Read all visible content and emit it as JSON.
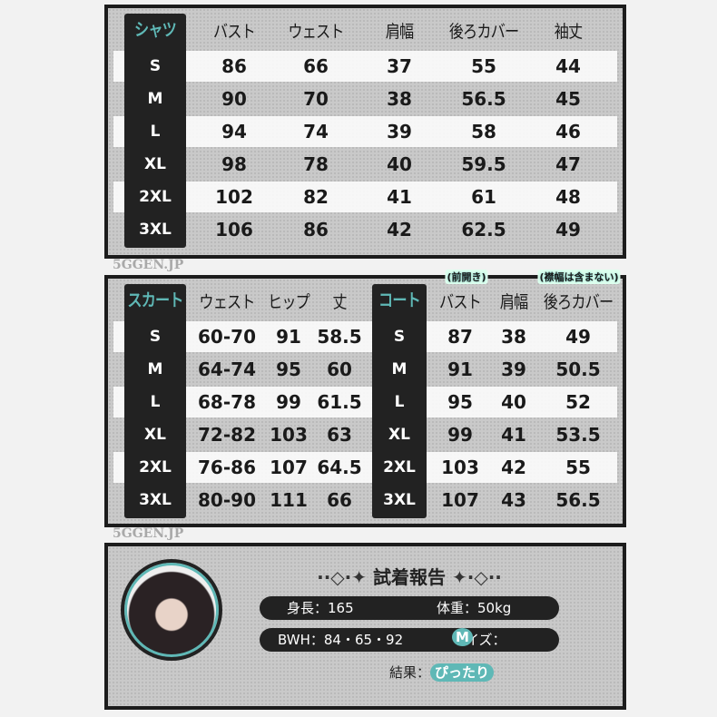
{
  "watermark": "5GGEN.JP",
  "shirt": {
    "label": "シャツ",
    "headers": [
      "バスト",
      "ウェスト",
      "肩幅",
      "後ろカバー",
      "袖丈"
    ],
    "rows": [
      {
        "size": "S",
        "values": [
          "86",
          "66",
          "37",
          "55",
          "44"
        ]
      },
      {
        "size": "M",
        "values": [
          "90",
          "70",
          "38",
          "56.5",
          "45"
        ]
      },
      {
        "size": "L",
        "values": [
          "94",
          "74",
          "39",
          "58",
          "46"
        ]
      },
      {
        "size": "XL",
        "values": [
          "98",
          "78",
          "40",
          "59.5",
          "47"
        ]
      },
      {
        "size": "2XL",
        "values": [
          "102",
          "82",
          "41",
          "61",
          "48"
        ]
      },
      {
        "size": "3XL",
        "values": [
          "106",
          "86",
          "42",
          "62.5",
          "49"
        ]
      }
    ]
  },
  "skirt": {
    "label": "スカート",
    "headers": [
      "ウェスト",
      "ヒップ",
      "丈"
    ],
    "rows": [
      {
        "size": "S",
        "values": [
          "60-70",
          "91",
          "58.5"
        ]
      },
      {
        "size": "M",
        "values": [
          "64-74",
          "95",
          "60"
        ]
      },
      {
        "size": "L",
        "values": [
          "68-78",
          "99",
          "61.5"
        ]
      },
      {
        "size": "XL",
        "values": [
          "72-82",
          "103",
          "63"
        ]
      },
      {
        "size": "2XL",
        "values": [
          "76-86",
          "107",
          "64.5"
        ]
      },
      {
        "size": "3XL",
        "values": [
          "80-90",
          "111",
          "66"
        ]
      }
    ]
  },
  "coat": {
    "label": "コート",
    "notes": [
      "(前開き)",
      "(襟幅は含まない)"
    ],
    "headers": [
      "バスト",
      "肩幅",
      "後ろカバー"
    ],
    "rows": [
      {
        "size": "S",
        "values": [
          "87",
          "38",
          "49"
        ]
      },
      {
        "size": "M",
        "values": [
          "91",
          "39",
          "50.5"
        ]
      },
      {
        "size": "L",
        "values": [
          "95",
          "40",
          "52"
        ]
      },
      {
        "size": "XL",
        "values": [
          "99",
          "41",
          "53.5"
        ]
      },
      {
        "size": "2XL",
        "values": [
          "103",
          "42",
          "55"
        ]
      },
      {
        "size": "3XL",
        "values": [
          "107",
          "43",
          "56.5"
        ]
      }
    ]
  },
  "report": {
    "title": "試着報告",
    "height": "身長：165",
    "weight": "体重：50kg",
    "bwh": "BWH：84・65・92",
    "size_label": "サイズ：",
    "size_value": "M",
    "result_label": "結果：",
    "result_value": "ぴったり"
  },
  "colors": {
    "accent": "#5fb8b6",
    "dark": "#1c1c1c",
    "panel": "#c9c9c9"
  }
}
